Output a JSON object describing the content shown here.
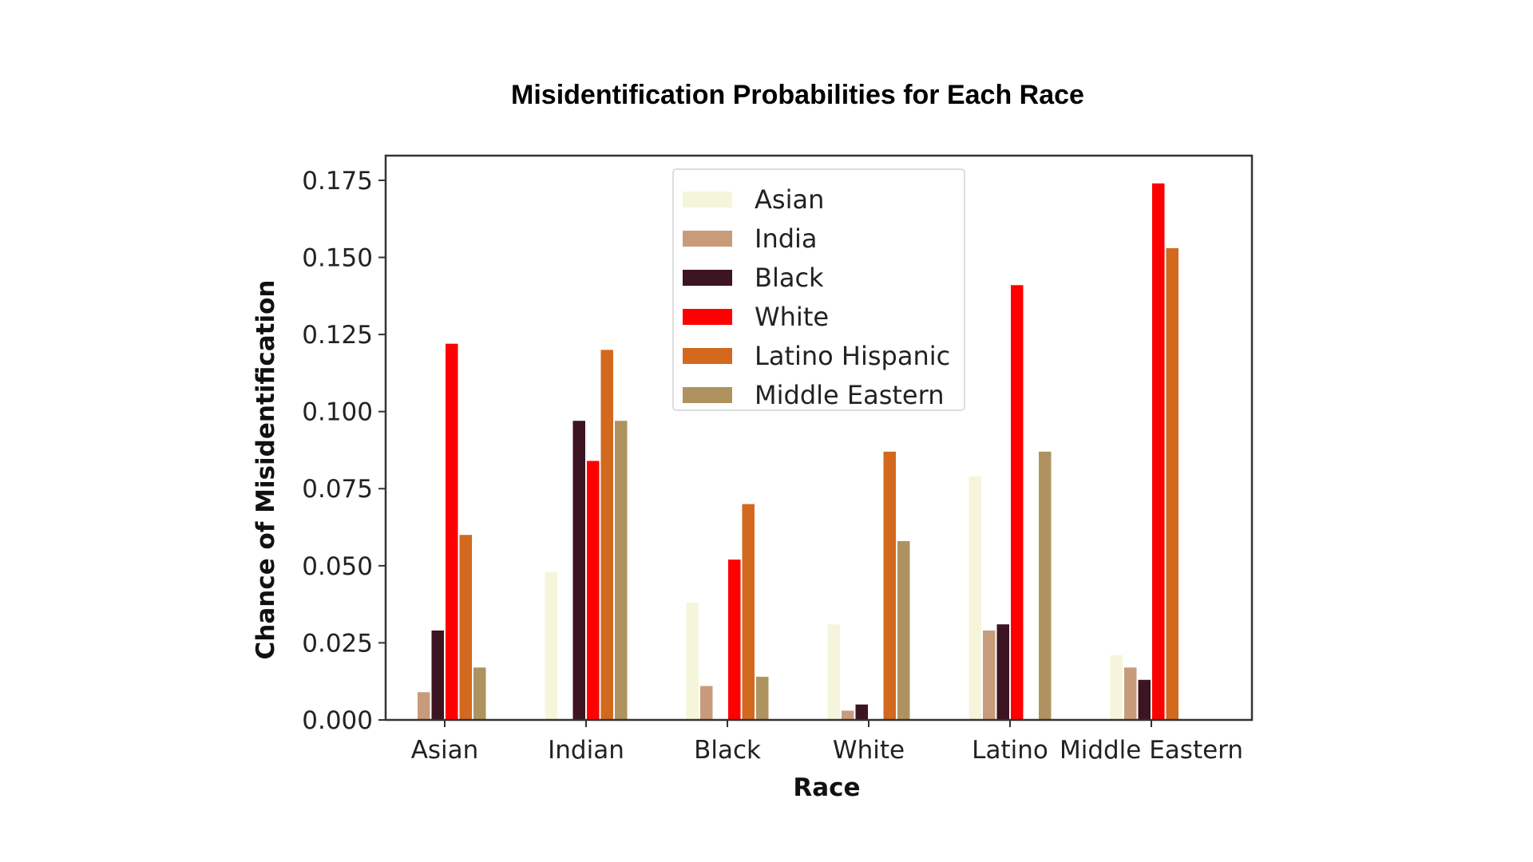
{
  "chart_data": {
    "type": "bar",
    "title": "Misidentification Probabilities for Each Race",
    "xlabel": "Race",
    "ylabel": "Chance of Misidentification",
    "categories": [
      "Asian",
      "Indian",
      "Black",
      "White",
      "Latino",
      "Middle Eastern"
    ],
    "ylim": [
      0,
      0.183
    ],
    "yticks": [
      "0.000",
      "0.025",
      "0.050",
      "0.075",
      "0.100",
      "0.125",
      "0.150",
      "0.175"
    ],
    "ytick_values": [
      0,
      0.025,
      0.05,
      0.075,
      0.1,
      0.125,
      0.15,
      0.175
    ],
    "grid": false,
    "legend_position": "upper-center",
    "series": [
      {
        "name": "Asian",
        "color": "#f5f5dc",
        "values": [
          0.0,
          0.048,
          0.038,
          0.031,
          0.079,
          0.021
        ]
      },
      {
        "name": "India",
        "color": "#c89b7b",
        "values": [
          0.009,
          0.0,
          0.011,
          0.003,
          0.029,
          0.017
        ]
      },
      {
        "name": "Black",
        "color": "#3d1421",
        "values": [
          0.029,
          0.097,
          0.0,
          0.005,
          0.031,
          0.013
        ]
      },
      {
        "name": "White",
        "color": "#ff0000",
        "values": [
          0.122,
          0.084,
          0.052,
          0.0,
          0.141,
          0.174
        ]
      },
      {
        "name": "Latino Hispanic",
        "color": "#d2691e",
        "values": [
          0.06,
          0.12,
          0.07,
          0.087,
          0.0,
          0.153
        ]
      },
      {
        "name": "Middle Eastern",
        "color": "#ae9361",
        "values": [
          0.017,
          0.097,
          0.014,
          0.058,
          0.087,
          0.0
        ]
      }
    ]
  }
}
